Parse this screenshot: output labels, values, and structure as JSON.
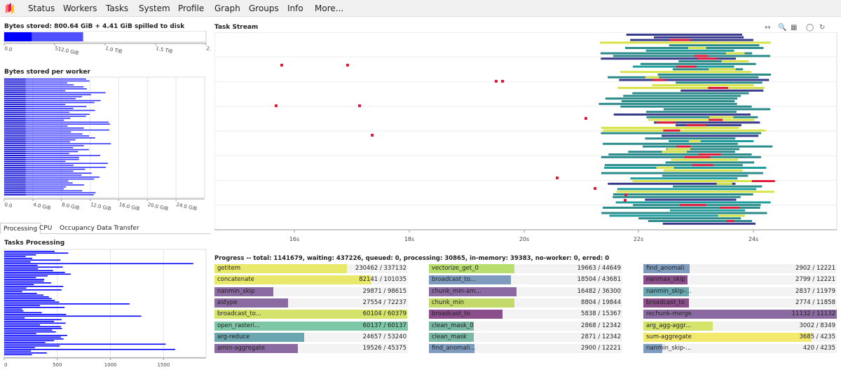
{
  "nav": {
    "items": [
      "Status",
      "Workers",
      "Tasks",
      "System",
      "Profile",
      "Graph",
      "Groups",
      "Info",
      "More..."
    ]
  },
  "bytes_stored": {
    "title": "Bytes stored: 800.64 GiB + 4.41 GiB spilled to disk",
    "stored_gib": 800.64,
    "spilled_gib": 4.41,
    "ticks": [
      "0.0",
      "512.0 GiB",
      "1.0 TiB",
      "1.5 TiB",
      "2.0 TiB"
    ]
  },
  "per_worker": {
    "title": "Bytes stored per worker",
    "ticks": [
      "0.0",
      "4.0 GiB",
      "8.0 GiB",
      "12.0 GiB",
      "16.0 GiB",
      "20.0 GiB",
      "24.0 GiB"
    ],
    "max_gib": 28
  },
  "tabs": [
    "Processing",
    "CPU",
    "Occupancy",
    "Data Transfer"
  ],
  "tasks_processing": {
    "title": "Tasks Processing",
    "ticks": [
      "0",
      "500",
      "1000",
      "1500"
    ],
    "max": 1900
  },
  "task_stream": {
    "title": "Task Stream",
    "x_ticks": [
      "16s",
      "18s",
      "20s",
      "22s",
      "24s"
    ],
    "tools": [
      "pan-icon",
      "zoom-icon",
      "box-zoom-icon",
      "wheel-zoom-icon",
      "reset-icon"
    ]
  },
  "progress": {
    "title": "Progress -- total: 1141679, waiting: 437226, queued: 0, processing: 30865, in-memory: 39383, no-worker: 0, erred: 0",
    "rows": [
      {
        "name": "getitem",
        "count": "230462 / 337132",
        "color": "#e8e86a",
        "done": 230462,
        "total": 337132
      },
      {
        "name": "concatenate",
        "count": "82141 / 101035",
        "color": "#e8e86a",
        "done": 82141,
        "total": 101035
      },
      {
        "name": "nanmin_skip",
        "count": "29871 / 98615",
        "color": "#8a6aa0",
        "done": 29871,
        "total": 98615
      },
      {
        "name": "astype",
        "count": "27554 / 72237",
        "color": "#8a6aa0",
        "done": 27554,
        "total": 72237
      },
      {
        "name": "broadcast_to...",
        "count": "60104 / 60379",
        "color": "#d6e36a",
        "done": 60104,
        "total": 60379
      },
      {
        "name": "open_rasteri...",
        "count": "60137 / 60137",
        "color": "#7ec7a6",
        "done": 60137,
        "total": 60137
      },
      {
        "name": "arg-reduce",
        "count": "24657 / 53240",
        "color": "#6aa6b0",
        "done": 24657,
        "total": 53240
      },
      {
        "name": "amin-aggregate",
        "count": "19526 / 45375",
        "color": "#8a6aa0",
        "done": 19526,
        "total": 45375
      },
      {
        "name": "vectorize_get_0",
        "count": "19663 / 44649",
        "color": "#b8de6f",
        "done": 19663,
        "total": 44649
      },
      {
        "name": "broadcast_to...",
        "count": "18504 / 43681",
        "color": "#7f9cbf",
        "done": 18504,
        "total": 43681
      },
      {
        "name": "chunk_min-am...",
        "count": "16482 / 36300",
        "color": "#8a6aa0",
        "done": 16482,
        "total": 36300
      },
      {
        "name": "chunk_min",
        "count": "8804 / 19844",
        "color": "#c3d96a",
        "done": 8804,
        "total": 19844
      },
      {
        "name": "broadcast_to",
        "count": "5838 / 15367",
        "color": "#8a4f8a",
        "done": 5838,
        "total": 15367
      },
      {
        "name": "clean_mask_0",
        "count": "2868 / 12342",
        "color": "#7ab8a6",
        "done": 2868,
        "total": 12342
      },
      {
        "name": "clean_mask",
        "count": "2871 / 12342",
        "color": "#7ab8a6",
        "done": 2871,
        "total": 12342
      },
      {
        "name": "find_anomali...",
        "count": "2900 / 12221",
        "color": "#7f9cbf",
        "done": 2900,
        "total": 12221
      },
      {
        "name": "find_anomali",
        "count": "2902 / 12221",
        "color": "#7f9cbf",
        "done": 2902,
        "total": 12221
      },
      {
        "name": "nanmax_skip",
        "count": "2799 / 12221",
        "color": "#8a4f8a",
        "done": 2799,
        "total": 12221
      },
      {
        "name": "nanmin_skip-...",
        "count": "2837 / 11979",
        "color": "#6aa6b0",
        "done": 2837,
        "total": 11979
      },
      {
        "name": "broadcast_to",
        "count": "2774 / 11858",
        "color": "#8a4f8a",
        "done": 2774,
        "total": 11858
      },
      {
        "name": "rechunk-merge",
        "count": "11132 / 11132",
        "color": "#8a6aa0",
        "done": 11132,
        "total": 11132
      },
      {
        "name": "arg_agg-aggr...",
        "count": "3002 / 8349",
        "color": "#d6e36a",
        "done": 3002,
        "total": 8349
      },
      {
        "name": "sum-aggregate",
        "count": "3685 / 4235",
        "color": "#f2e96e",
        "done": 3685,
        "total": 4235
      },
      {
        "name": "nanmin_skip-...",
        "count": "420 / 4235",
        "color": "#7f9cbf",
        "done": 420,
        "total": 4235
      }
    ]
  }
}
